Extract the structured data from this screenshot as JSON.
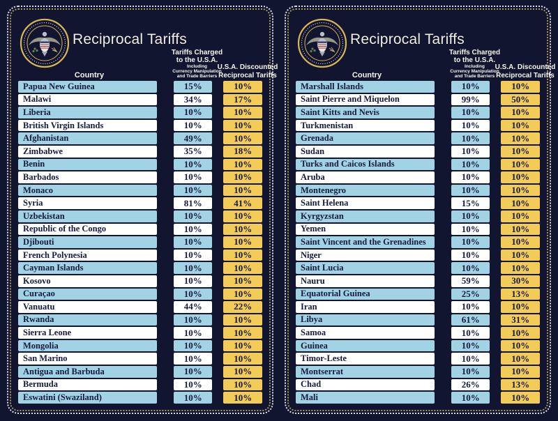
{
  "header": {
    "title": "Reciprocal Tariffs",
    "country_label": "Country",
    "charged_lines": [
      "Tariffs Charged",
      "to the U.S.A."
    ],
    "charged_sub_lines": [
      "Including",
      "Currency Manipulation",
      "and Trade Barriers"
    ],
    "discount_lines": [
      "U.S.A. Discounted",
      "Reciprocal Tariffs"
    ]
  },
  "colors": {
    "bg": "#121530",
    "row-blue": "#a2d3e5",
    "row-white": "#ffffff",
    "box-gold": "#f2cb58",
    "text-dark": "#151a3e",
    "title-text": "#f0eee6",
    "border-white": "#dfe0e8",
    "border-gold": "#a8985e",
    "seal-gold": "#d8b752"
  },
  "chart_data": [
    {
      "type": "table",
      "title": "Reciprocal Tariffs",
      "columns": [
        "Country",
        "Tariffs Charged to the U.S.A. Including Currency Manipulation and Trade Barriers",
        "U.S.A. Discounted Reciprocal Tariffs"
      ],
      "rows": [
        {
          "country": "Papua New Guinea",
          "charged": "15%",
          "discounted": "10%"
        },
        {
          "country": "Malawi",
          "charged": "34%",
          "discounted": "17%"
        },
        {
          "country": "Liberia",
          "charged": "10%",
          "discounted": "10%"
        },
        {
          "country": "British Virgin Islands",
          "charged": "10%",
          "discounted": "10%"
        },
        {
          "country": "Afghanistan",
          "charged": "49%",
          "discounted": "10%"
        },
        {
          "country": "Zimbabwe",
          "charged": "35%",
          "discounted": "18%"
        },
        {
          "country": "Benin",
          "charged": "10%",
          "discounted": "10%"
        },
        {
          "country": "Barbados",
          "charged": "10%",
          "discounted": "10%"
        },
        {
          "country": "Monaco",
          "charged": "10%",
          "discounted": "10%"
        },
        {
          "country": "Syria",
          "charged": "81%",
          "discounted": "41%"
        },
        {
          "country": "Uzbekistan",
          "charged": "10%",
          "discounted": "10%"
        },
        {
          "country": "Republic of the Congo",
          "charged": "10%",
          "discounted": "10%"
        },
        {
          "country": "Djibouti",
          "charged": "10%",
          "discounted": "10%"
        },
        {
          "country": "French Polynesia",
          "charged": "10%",
          "discounted": "10%"
        },
        {
          "country": "Cayman Islands",
          "charged": "10%",
          "discounted": "10%"
        },
        {
          "country": "Kosovo",
          "charged": "10%",
          "discounted": "10%"
        },
        {
          "country": "Curaçao",
          "charged": "10%",
          "discounted": "10%"
        },
        {
          "country": "Vanuatu",
          "charged": "44%",
          "discounted": "22%"
        },
        {
          "country": "Rwanda",
          "charged": "10%",
          "discounted": "10%"
        },
        {
          "country": "Sierra Leone",
          "charged": "10%",
          "discounted": "10%"
        },
        {
          "country": "Mongolia",
          "charged": "10%",
          "discounted": "10%"
        },
        {
          "country": "San Marino",
          "charged": "10%",
          "discounted": "10%"
        },
        {
          "country": "Antigua and Barbuda",
          "charged": "10%",
          "discounted": "10%"
        },
        {
          "country": "Bermuda",
          "charged": "10%",
          "discounted": "10%"
        },
        {
          "country": "Eswatini (Swaziland)",
          "charged": "10%",
          "discounted": "10%"
        }
      ]
    },
    {
      "type": "table",
      "title": "Reciprocal Tariffs",
      "columns": [
        "Country",
        "Tariffs Charged to the U.S.A. Including Currency Manipulation and Trade Barriers",
        "U.S.A. Discounted Reciprocal Tariffs"
      ],
      "rows": [
        {
          "country": "Marshall Islands",
          "charged": "10%",
          "discounted": "10%"
        },
        {
          "country": "Saint Pierre and Miquelon",
          "charged": "99%",
          "discounted": "50%"
        },
        {
          "country": "Saint Kitts and Nevis",
          "charged": "10%",
          "discounted": "10%"
        },
        {
          "country": "Turkmenistan",
          "charged": "10%",
          "discounted": "10%"
        },
        {
          "country": "Grenada",
          "charged": "10%",
          "discounted": "10%"
        },
        {
          "country": "Sudan",
          "charged": "10%",
          "discounted": "10%"
        },
        {
          "country": "Turks and Caicos Islands",
          "charged": "10%",
          "discounted": "10%"
        },
        {
          "country": "Aruba",
          "charged": "10%",
          "discounted": "10%"
        },
        {
          "country": "Montenegro",
          "charged": "10%",
          "discounted": "10%"
        },
        {
          "country": "Saint Helena",
          "charged": "15%",
          "discounted": "10%"
        },
        {
          "country": "Kyrgyzstan",
          "charged": "10%",
          "discounted": "10%"
        },
        {
          "country": "Yemen",
          "charged": "10%",
          "discounted": "10%"
        },
        {
          "country": "Saint Vincent and the Grenadines",
          "charged": "10%",
          "discounted": "10%"
        },
        {
          "country": "Niger",
          "charged": "10%",
          "discounted": "10%"
        },
        {
          "country": "Saint Lucia",
          "charged": "10%",
          "discounted": "10%"
        },
        {
          "country": "Nauru",
          "charged": "59%",
          "discounted": "30%"
        },
        {
          "country": "Equatorial Guinea",
          "charged": "25%",
          "discounted": "13%"
        },
        {
          "country": "Iran",
          "charged": "10%",
          "discounted": "10%"
        },
        {
          "country": "Libya",
          "charged": "61%",
          "discounted": "31%"
        },
        {
          "country": "Samoa",
          "charged": "10%",
          "discounted": "10%"
        },
        {
          "country": "Guinea",
          "charged": "10%",
          "discounted": "10%"
        },
        {
          "country": "Timor-Leste",
          "charged": "10%",
          "discounted": "10%"
        },
        {
          "country": "Montserrat",
          "charged": "10%",
          "discounted": "10%"
        },
        {
          "country": "Chad",
          "charged": "26%",
          "discounted": "13%"
        },
        {
          "country": "Mali",
          "charged": "10%",
          "discounted": "10%"
        }
      ]
    }
  ]
}
